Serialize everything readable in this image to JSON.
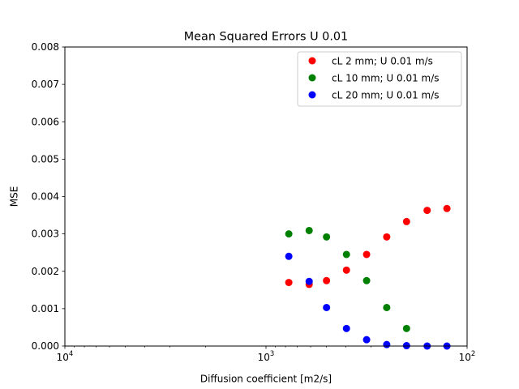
{
  "chart_data": {
    "type": "scatter",
    "title": "Mean Squared Errors U 0.01",
    "xlabel": "Diffusion coefficient [m2/s]",
    "ylabel": "MSE",
    "xscale": "log",
    "x_inverted": true,
    "xlim": [
      10000,
      100
    ],
    "ylim": [
      0,
      0.008
    ],
    "x_ticks": [
      {
        "value": 10000,
        "base": "10",
        "exp": "4"
      },
      {
        "value": 1000,
        "base": "10",
        "exp": "3"
      },
      {
        "value": 100,
        "base": "10",
        "exp": "2"
      }
    ],
    "y_ticks": [
      "0.000",
      "0.001",
      "0.002",
      "0.003",
      "0.004",
      "0.005",
      "0.006",
      "0.007",
      "0.008"
    ],
    "grid": false,
    "legend_position": "top-right",
    "series": [
      {
        "name": "cL 2 mm; U 0.01 m/s",
        "color": "#ff0000",
        "points": [
          [
            770,
            0.0017
          ],
          [
            610,
            0.00165
          ],
          [
            500,
            0.00175
          ],
          [
            398,
            0.00203
          ],
          [
            316,
            0.00245
          ],
          [
            251,
            0.00292
          ],
          [
            200,
            0.00333
          ],
          [
            158,
            0.00363
          ],
          [
            126,
            0.00368
          ]
        ]
      },
      {
        "name": "cL 10 mm; U 0.01 m/s",
        "color": "#008000",
        "points": [
          [
            770,
            0.003
          ],
          [
            610,
            0.00309
          ],
          [
            500,
            0.00292
          ],
          [
            398,
            0.00245
          ],
          [
            316,
            0.00175
          ],
          [
            251,
            0.00103
          ],
          [
            200,
            0.00047
          ]
        ]
      },
      {
        "name": "cL 20 mm; U 0.01 m/s",
        "color": "#0000ff",
        "points": [
          [
            770,
            0.0024
          ],
          [
            610,
            0.00173
          ],
          [
            500,
            0.00103
          ],
          [
            398,
            0.00047
          ],
          [
            316,
            0.00017
          ],
          [
            251,
            4e-05
          ],
          [
            200,
            1e-05
          ],
          [
            158,
            0.0
          ],
          [
            126,
            0.0
          ]
        ]
      }
    ]
  }
}
